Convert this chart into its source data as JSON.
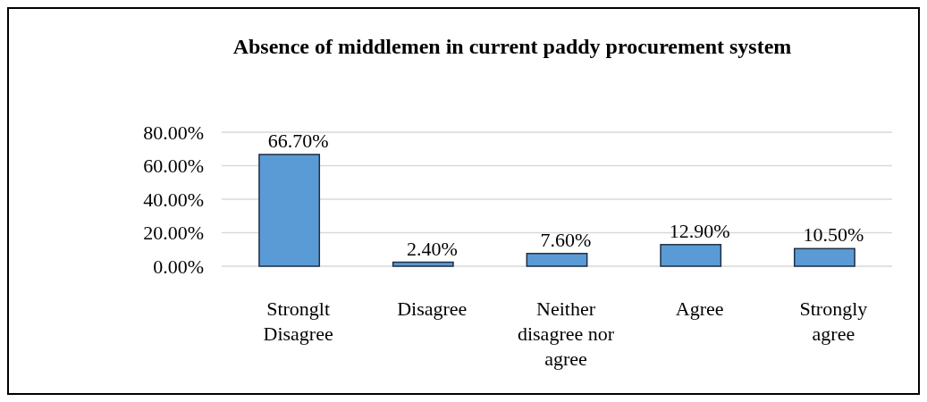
{
  "chart_data": {
    "type": "bar",
    "title": "Absence of middlemen in current paddy procurement system",
    "categories": [
      "Stronglt Disagree",
      "Disagree",
      "Neither disagree nor agree",
      "Agree",
      "Strongly agree"
    ],
    "values": [
      66.7,
      2.4,
      7.6,
      12.9,
      10.5
    ],
    "value_labels": [
      "66.70%",
      "2.40%",
      "7.60%",
      "12.90%",
      "10.50%"
    ],
    "color": "#5b9bd5",
    "ylim": [
      0,
      80
    ],
    "yticks": [
      {
        "value": 0,
        "label": "0.00%"
      },
      {
        "value": 20,
        "label": "20.00%"
      },
      {
        "value": 40,
        "label": "40.00%"
      },
      {
        "value": 60,
        "label": "60.00%"
      },
      {
        "value": 80,
        "label": "80.00%"
      }
    ],
    "grid": "y"
  }
}
